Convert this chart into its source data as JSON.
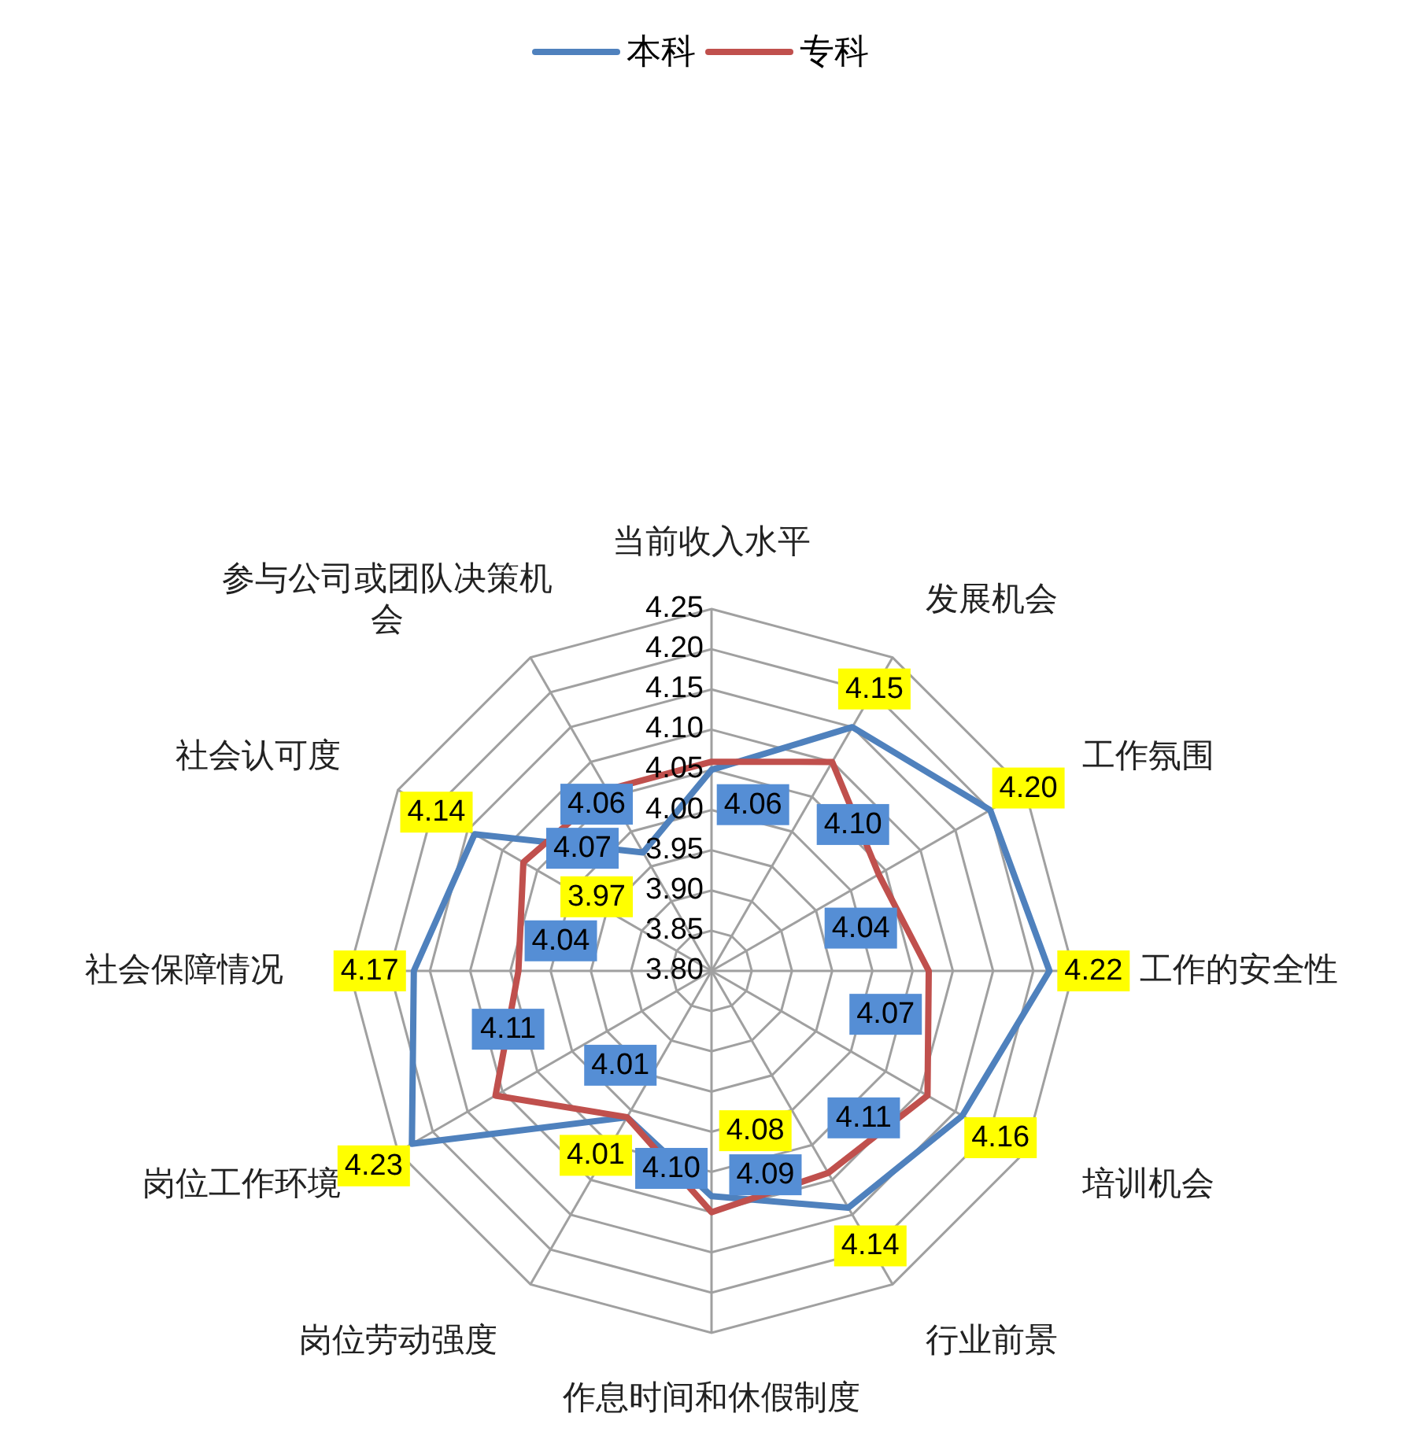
{
  "chart_data": {
    "type": "radar",
    "categories": [
      "当前收入水平",
      "发展机会",
      "工作氛围",
      "工作的安全性",
      "培训机会",
      "行业前景",
      "作息时间和休假制度",
      "岗位劳动强度",
      "岗位工作环境",
      "社会保障情况",
      "社会认可度",
      "参与公司或团队决策机会"
    ],
    "series": [
      {
        "name": "本科",
        "color": "#4f81bd",
        "values": [
          4.05,
          4.15,
          4.2,
          4.22,
          4.16,
          4.14,
          4.08,
          4.01,
          4.23,
          4.17,
          4.14,
          3.97
        ],
        "value_labels": [
          null,
          "4.15",
          "4.20",
          "4.22",
          "4.16",
          "4.14",
          "4.08",
          "4.01",
          "4.23",
          "4.17",
          "4.14",
          "3.97"
        ]
      },
      {
        "name": "专科",
        "color": "#c0504d",
        "values": [
          4.06,
          4.1,
          4.04,
          4.07,
          4.11,
          4.09,
          4.1,
          4.01,
          4.11,
          4.04,
          4.07,
          4.06
        ],
        "value_labels": [
          "4.06",
          "4.10",
          "4.04",
          "4.07",
          "4.11",
          "4.09",
          "4.10",
          "4.01",
          "4.11",
          "4.04",
          "4.07",
          "4.06"
        ]
      }
    ],
    "ylim": [
      3.8,
      4.25
    ],
    "yticks": [
      {
        "value": 3.8,
        "label": "3.80"
      },
      {
        "value": 3.85,
        "label": "3.85"
      },
      {
        "value": 3.9,
        "label": "3.90"
      },
      {
        "value": 3.95,
        "label": "3.95"
      },
      {
        "value": 4.0,
        "label": "4.00"
      },
      {
        "value": 4.05,
        "label": "4.05"
      },
      {
        "value": 4.1,
        "label": "4.10"
      },
      {
        "value": 4.15,
        "label": "4.15"
      },
      {
        "value": 4.2,
        "label": "4.20"
      },
      {
        "value": 4.25,
        "label": "4.25"
      }
    ],
    "grid": true,
    "legend": "top",
    "marker": "none"
  }
}
